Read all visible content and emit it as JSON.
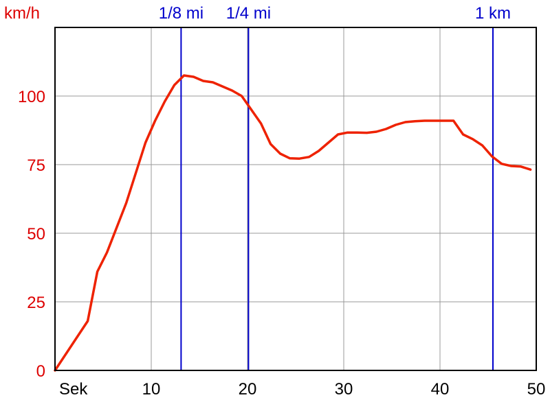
{
  "chart_data": {
    "type": "line",
    "ylabel": "km/h",
    "xlabel": "Sek",
    "xlim": [
      0,
      50
    ],
    "ylim": [
      0,
      125
    ],
    "x_ticks": [
      10,
      20,
      30,
      40,
      50
    ],
    "y_ticks": [
      0,
      25,
      50,
      75,
      100
    ],
    "grid": true,
    "colors": {
      "series": "#ee2200",
      "markers": "#0000cc",
      "axis_text": "#dd0000",
      "grid": "#999999",
      "frame": "#000000"
    },
    "markers": [
      {
        "label": "1/8 mi",
        "x": 13.1
      },
      {
        "label": "1/4 mi",
        "x": 20.1
      },
      {
        "label": "1 km",
        "x": 45.5
      }
    ],
    "series": [
      {
        "x": [
          0,
          3.4,
          4.4,
          5.4,
          6.4,
          7.4,
          8.4,
          9.4,
          10.4,
          11.4,
          12.4,
          13.4,
          14.4,
          15.4,
          16.4,
          17.4,
          18.4,
          19.4,
          20.4,
          21.4,
          22.4,
          23.4,
          24.4,
          25.4,
          26.4,
          27.4,
          28.4,
          29.4,
          30.4,
          31.4,
          32.4,
          33.4,
          34.4,
          35.4,
          36.4,
          37.4,
          38.4,
          39.4,
          40.4,
          41.4,
          42.4,
          43.4,
          44.4,
          45.4,
          46.4,
          47.4,
          48.4,
          49.4
        ],
        "y": [
          0,
          18,
          36,
          43,
          52,
          61,
          72,
          83,
          91,
          98,
          104,
          107.5,
          107,
          105.5,
          105,
          103.5,
          102,
          100,
          95,
          90,
          82.5,
          79,
          77.3,
          77.2,
          77.8,
          80,
          83,
          86,
          86.7,
          86.7,
          86.6,
          87,
          88,
          89.5,
          90.5,
          90.8,
          91,
          91,
          91,
          91,
          86,
          84.3,
          82,
          78,
          75.3,
          74.5,
          74.3,
          73.2
        ]
      }
    ]
  }
}
